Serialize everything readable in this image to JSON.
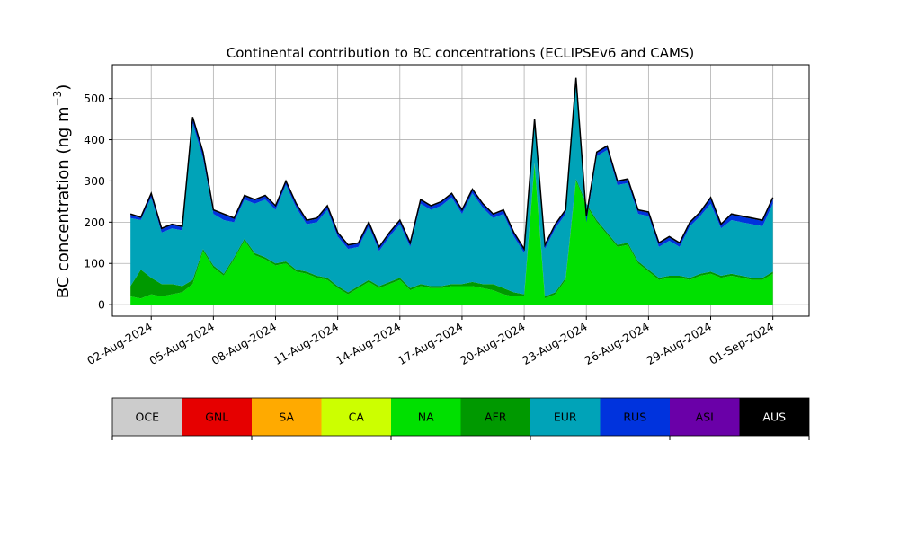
{
  "chart_data": {
    "type": "area",
    "title": "Continental contribution to BC concentrations (ECLIPSEv6 and CAMS)",
    "ylabel": "BC concentration (ng m",
    "ylabel_sup": "−3",
    "ylabel_close": ")",
    "ylim": [
      -28,
      582
    ],
    "y_ticks": [
      0,
      100,
      200,
      300,
      400,
      500
    ],
    "xlim": [
      "2024-07-31T03:00",
      "2024-09-02T18:00"
    ],
    "x_ticks": [
      "2024-08-02",
      "2024-08-05",
      "2024-08-08",
      "2024-08-11",
      "2024-08-14",
      "2024-08-17",
      "2024-08-20",
      "2024-08-23",
      "2024-08-26",
      "2024-08-29",
      "2024-09-01"
    ],
    "x_tick_labels": [
      "02-Aug-2024",
      "05-Aug-2024",
      "08-Aug-2024",
      "11-Aug-2024",
      "14-Aug-2024",
      "17-Aug-2024",
      "20-Aug-2024",
      "23-Aug-2024",
      "26-Aug-2024",
      "29-Aug-2024",
      "01-Sep-2024"
    ],
    "grid": true,
    "stacked": true,
    "total_line_color": "#000000",
    "colorbar_labels": [
      "OCE",
      "GNL",
      "SA",
      "CA",
      "NA",
      "AFR",
      "EUR",
      "RUS",
      "ASI",
      "AUS"
    ],
    "colorbar_colors": [
      "#cccccc",
      "#e60000",
      "#ffaa00",
      "#ccff00",
      "#00e000",
      "#009900",
      "#00a3b8",
      "#0033dd",
      "#6a00a8",
      "#000000"
    ],
    "stack_order": [
      "NA",
      "AFR",
      "EUR",
      "RUS",
      "AUS"
    ],
    "series_colors": {
      "NA": "#00e000",
      "AFR": "#009900",
      "EUR": "#00a3b8",
      "RUS": "#0033dd",
      "AUS": "#000000"
    },
    "x": [
      "2024-08-01T00",
      "2024-08-01T12",
      "2024-08-02T00",
      "2024-08-02T12",
      "2024-08-03T00",
      "2024-08-03T12",
      "2024-08-04T00",
      "2024-08-04T12",
      "2024-08-05T00",
      "2024-08-05T12",
      "2024-08-06T00",
      "2024-08-06T12",
      "2024-08-07T00",
      "2024-08-07T12",
      "2024-08-08T00",
      "2024-08-08T12",
      "2024-08-09T00",
      "2024-08-09T12",
      "2024-08-10T00",
      "2024-08-10T12",
      "2024-08-11T00",
      "2024-08-11T12",
      "2024-08-12T00",
      "2024-08-12T12",
      "2024-08-13T00",
      "2024-08-13T12",
      "2024-08-14T00",
      "2024-08-14T12",
      "2024-08-15T00",
      "2024-08-15T12",
      "2024-08-16T00",
      "2024-08-16T12",
      "2024-08-17T00",
      "2024-08-17T12",
      "2024-08-18T00",
      "2024-08-18T12",
      "2024-08-19T00",
      "2024-08-19T12",
      "2024-08-20T00",
      "2024-08-20T12",
      "2024-08-21T00",
      "2024-08-21T12",
      "2024-08-22T00",
      "2024-08-22T12",
      "2024-08-23T00",
      "2024-08-23T12",
      "2024-08-24T00",
      "2024-08-24T12",
      "2024-08-25T00",
      "2024-08-25T12",
      "2024-08-26T00",
      "2024-08-26T12",
      "2024-08-27T00",
      "2024-08-27T12",
      "2024-08-28T00",
      "2024-08-28T12",
      "2024-08-29T00",
      "2024-08-29T12",
      "2024-08-30T00",
      "2024-08-30T12",
      "2024-08-31T00",
      "2024-08-31T12",
      "2024-09-01T00"
    ],
    "total": [
      220,
      212,
      270,
      185,
      195,
      190,
      455,
      370,
      230,
      220,
      210,
      265,
      255,
      265,
      240,
      300,
      245,
      205,
      210,
      240,
      175,
      145,
      150,
      200,
      140,
      175,
      205,
      150,
      255,
      240,
      250,
      270,
      230,
      280,
      245,
      220,
      230,
      175,
      135,
      450,
      145,
      195,
      230,
      550,
      215,
      370,
      385,
      300,
      305,
      230,
      225,
      150,
      165,
      150,
      200,
      225,
      260,
      195,
      220,
      215,
      210,
      205,
      260
    ],
    "series": [
      {
        "name": "NA",
        "values": [
          20,
          15,
          25,
          20,
          25,
          30,
          50,
          130,
          90,
          70,
          110,
          155,
          120,
          110,
          95,
          100,
          80,
          75,
          65,
          60,
          40,
          25,
          40,
          55,
          40,
          50,
          60,
          35,
          45,
          40,
          40,
          45,
          45,
          45,
          40,
          35,
          25,
          20,
          20,
          340,
          15,
          25,
          60,
          300,
          240,
          200,
          170,
          140,
          145,
          100,
          80,
          60,
          65,
          65,
          60,
          70,
          75,
          65,
          70,
          65,
          60,
          60,
          75
        ]
      },
      {
        "name": "AFR",
        "values": [
          25,
          70,
          40,
          30,
          25,
          15,
          10,
          5,
          5,
          5,
          5,
          5,
          5,
          5,
          5,
          5,
          5,
          5,
          5,
          5,
          5,
          5,
          5,
          5,
          5,
          5,
          5,
          5,
          5,
          5,
          5,
          5,
          5,
          10,
          10,
          15,
          15,
          10,
          5,
          5,
          5,
          5,
          5,
          5,
          5,
          5,
          5,
          5,
          5,
          5,
          5,
          5,
          5,
          5,
          5,
          5,
          5,
          5,
          5,
          5,
          5,
          5,
          5
        ]
      },
      {
        "name": "EUR",
        "values": [
          165,
          120,
          195,
          125,
          135,
          135,
          380,
          220,
          125,
          130,
          85,
          95,
          120,
          140,
          130,
          185,
          150,
          115,
          130,
          165,
          120,
          105,
          95,
          130,
          85,
          110,
          130,
          100,
          195,
          185,
          195,
          210,
          170,
          215,
          185,
          160,
          180,
          135,
          100,
          95,
          115,
          155,
          155,
          235,
          -45,
          155,
          200,
          145,
          145,
          115,
          130,
          75,
          85,
          70,
          125,
          140,
          165,
          115,
          130,
          130,
          130,
          125,
          165
        ]
      },
      {
        "name": "RUS",
        "values": [
          8,
          5,
          8,
          8,
          8,
          8,
          13,
          13,
          8,
          13,
          8,
          8,
          8,
          8,
          8,
          8,
          8,
          8,
          8,
          8,
          8,
          8,
          8,
          8,
          8,
          8,
          8,
          8,
          8,
          8,
          8,
          8,
          8,
          8,
          8,
          8,
          8,
          8,
          8,
          8,
          8,
          8,
          8,
          8,
          13,
          8,
          8,
          8,
          8,
          8,
          8,
          8,
          8,
          8,
          8,
          8,
          13,
          8,
          13,
          13,
          13,
          13,
          13
        ]
      },
      {
        "name": "AUS",
        "values": [
          2,
          2,
          2,
          2,
          2,
          2,
          2,
          2,
          2,
          2,
          2,
          2,
          2,
          2,
          2,
          2,
          2,
          2,
          2,
          2,
          2,
          2,
          2,
          2,
          2,
          2,
          2,
          2,
          2,
          2,
          2,
          2,
          2,
          2,
          2,
          2,
          2,
          2,
          2,
          2,
          2,
          2,
          2,
          2,
          2,
          2,
          2,
          2,
          2,
          2,
          2,
          2,
          2,
          2,
          2,
          2,
          2,
          2,
          2,
          2,
          2,
          2,
          2
        ]
      }
    ]
  }
}
